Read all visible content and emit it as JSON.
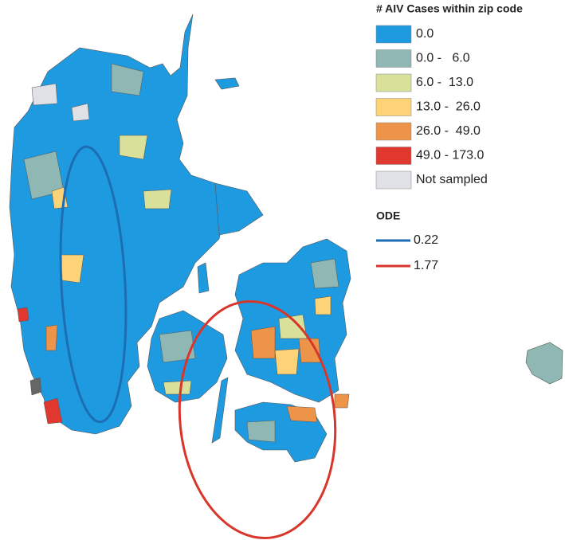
{
  "legend": {
    "title": "# AIV Cases within zip code",
    "classes": [
      {
        "label": "0.0",
        "color": "#1e9be0"
      },
      {
        "label": "0.0 -   6.0",
        "color": "#8fb8b4"
      },
      {
        "label": "6.0 -  13.0",
        "color": "#d8e09a"
      },
      {
        "label": "13.0 -  26.0",
        "color": "#fcd477"
      },
      {
        "label": "26.0 -  49.0",
        "color": "#ee9448"
      },
      {
        "label": "49.0 - 173.0",
        "color": "#e0382f"
      },
      {
        "label": "Not sampled",
        "color": "#dfe1e6"
      }
    ]
  },
  "ode": {
    "title": "ODE",
    "entries": [
      {
        "label": "0.22",
        "color": "#1d6db5"
      },
      {
        "label": "1.77",
        "color": "#d9362b"
      }
    ]
  }
}
